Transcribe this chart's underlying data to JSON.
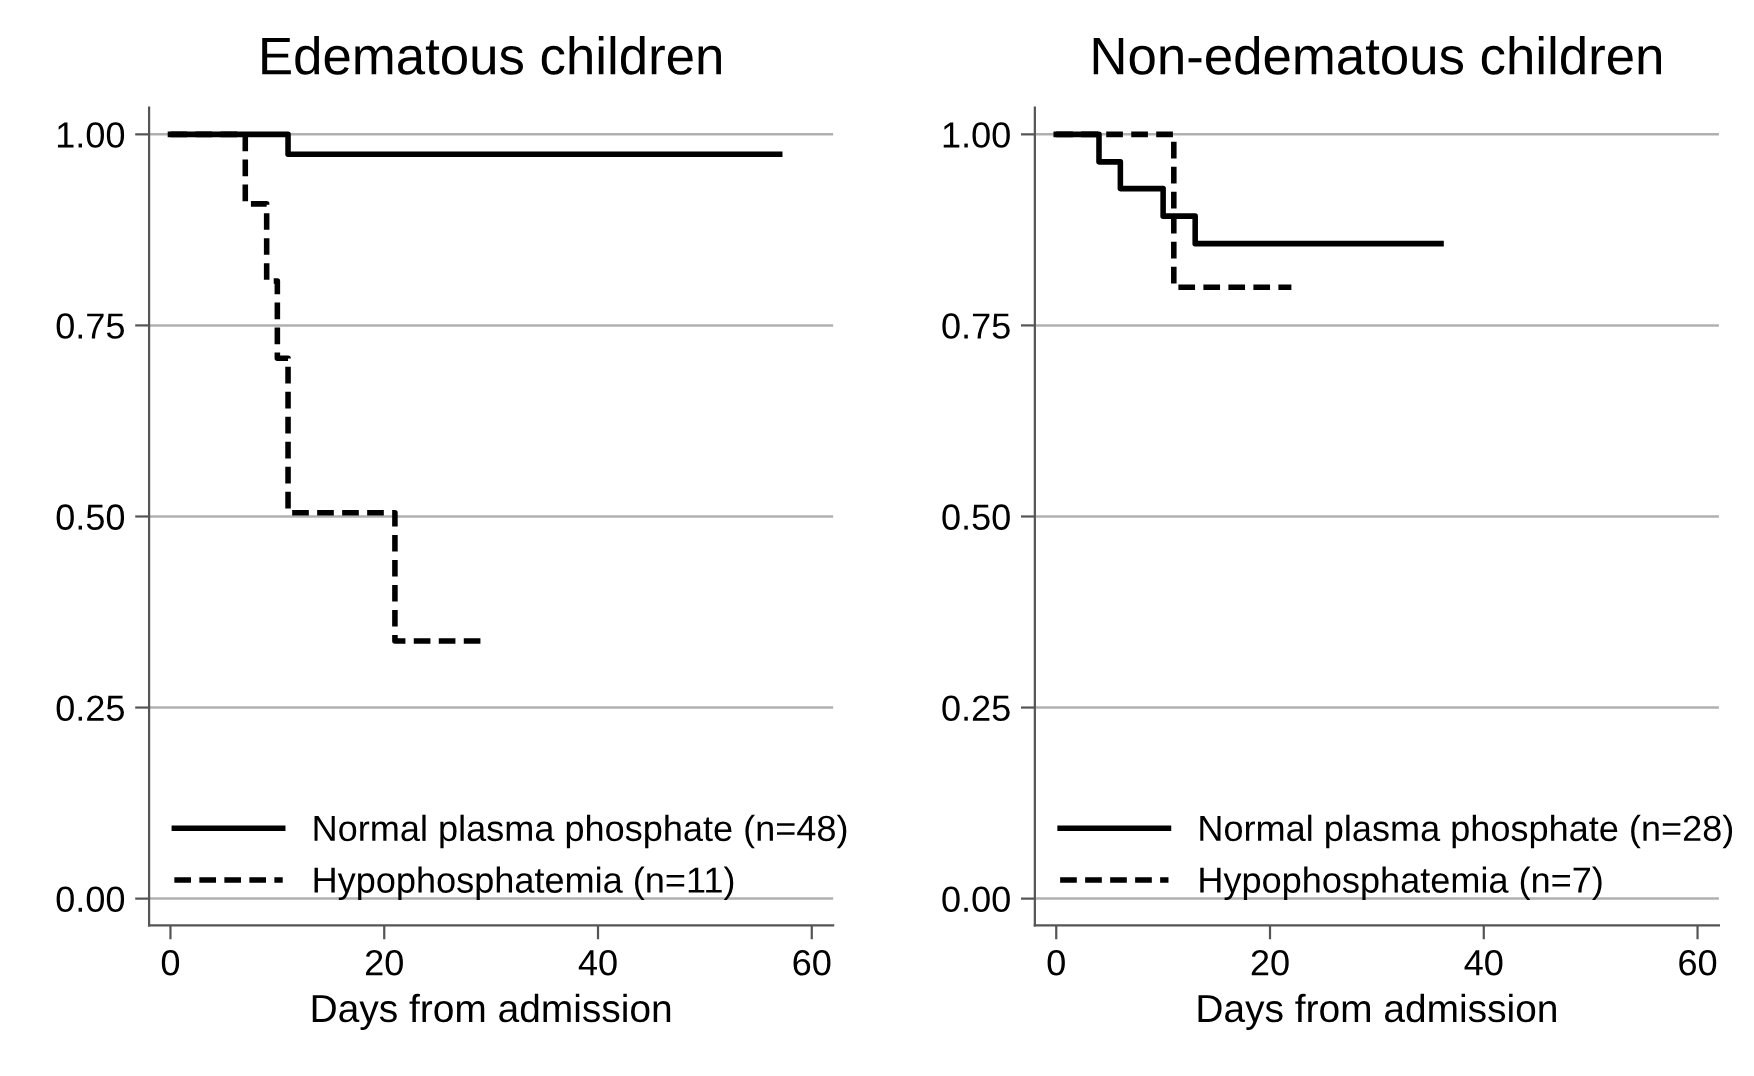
{
  "chart_data": [
    {
      "type": "step",
      "title": "Edematous children",
      "xlabel": "Days from admission",
      "xlim": [
        -2,
        62
      ],
      "xticks": [
        0,
        20,
        40,
        60
      ],
      "ylim": [
        -0.035,
        1.035
      ],
      "yticks": [
        {
          "value": 0,
          "label": "0.00"
        },
        {
          "value": 0.25,
          "label": "0.25"
        },
        {
          "value": 0.5,
          "label": "0.50"
        },
        {
          "value": 0.75,
          "label": "0.75"
        },
        {
          "value": 1,
          "label": "1.00"
        }
      ],
      "grid": "y",
      "legend": "bottom left",
      "series": [
        {
          "name": "Normal plasma phosphate (n=48)",
          "color": "#000000",
          "line_style": "solid",
          "x": [
            0,
            11,
            57
          ],
          "values": [
            1,
            0.974,
            0.974
          ]
        },
        {
          "name": "Hypophosphatemia (n=11)",
          "color": "#000000",
          "line_style": "dashed",
          "x": [
            0,
            7,
            9,
            10,
            11,
            21,
            29
          ],
          "values": [
            1,
            0.909,
            0.808,
            0.707,
            0.505,
            0.337,
            0.337
          ]
        }
      ]
    },
    {
      "type": "step",
      "title": "Non-edematous children",
      "xlabel": "Days from admission",
      "xlim": [
        -2,
        62
      ],
      "xticks": [
        0,
        20,
        40,
        60
      ],
      "ylim": [
        -0.035,
        1.035
      ],
      "yticks": [
        {
          "value": 0,
          "label": "0.00"
        },
        {
          "value": 0.25,
          "label": "0.25"
        },
        {
          "value": 0.5,
          "label": "0.50"
        },
        {
          "value": 0.75,
          "label": "0.75"
        },
        {
          "value": 1,
          "label": "1.00"
        }
      ],
      "grid": "y",
      "legend": "bottom left",
      "series": [
        {
          "name": "Normal plasma phosphate (n=28)",
          "color": "#000000",
          "line_style": "solid",
          "x": [
            0,
            4,
            6,
            10,
            13,
            36
          ],
          "values": [
            1,
            0.964,
            0.929,
            0.893,
            0.857,
            0.857
          ]
        },
        {
          "name": "Hypophosphatemia (n=7)",
          "color": "#000000",
          "line_style": "dashed",
          "x": [
            0,
            11,
            22
          ],
          "values": [
            1,
            0.8,
            0.8
          ]
        }
      ]
    }
  ]
}
